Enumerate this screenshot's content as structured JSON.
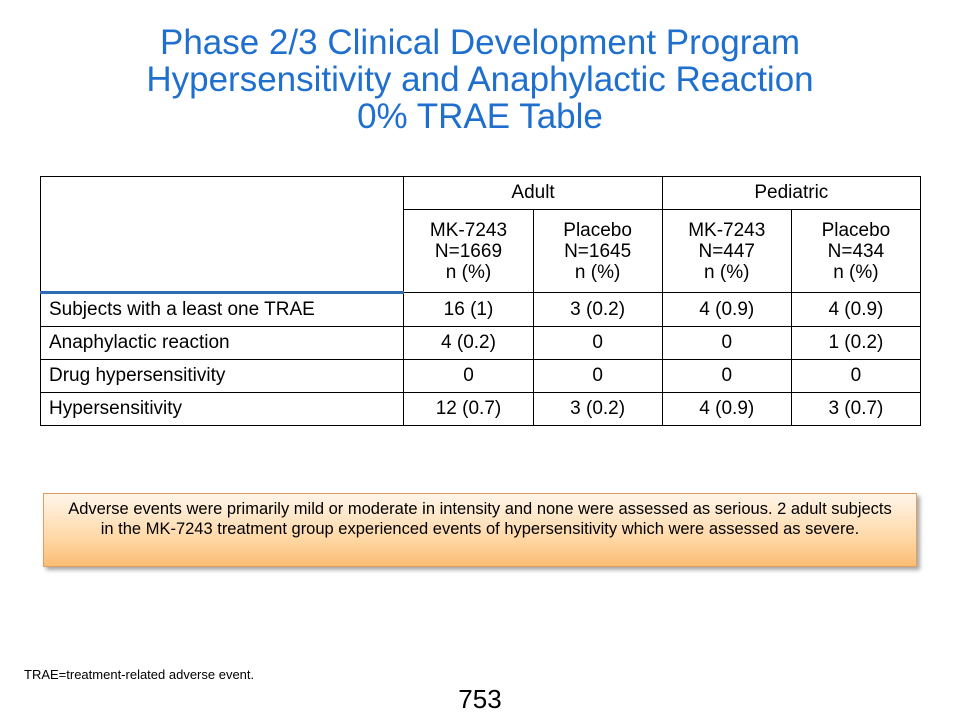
{
  "title": {
    "line1": "Phase 2/3 Clinical Development Program",
    "line2": "Hypersensitivity and Anaphylactic Reaction",
    "line3": "0% TRAE Table"
  },
  "table": {
    "groups": [
      "Adult",
      "Pediatric"
    ],
    "columns": [
      {
        "drug": "MK-7243",
        "n": "N=1669",
        "unit": "n (%)"
      },
      {
        "drug": "Placebo",
        "n": "N=1645",
        "unit": "n (%)"
      },
      {
        "drug": "MK-7243",
        "n": "N=447",
        "unit": "n (%)"
      },
      {
        "drug": "Placebo",
        "n": "N=434",
        "unit": "n (%)"
      }
    ],
    "rows": [
      {
        "label": "Subjects with a least one TRAE",
        "values": [
          "16 (1)",
          "3 (0.2)",
          "4 (0.9)",
          "4 (0.9)"
        ]
      },
      {
        "label": "Anaphylactic reaction",
        "values": [
          "4 (0.2)",
          "0",
          "0",
          "1 (0.2)"
        ]
      },
      {
        "label": "Drug hypersensitivity",
        "values": [
          "0",
          "0",
          "0",
          "0"
        ]
      },
      {
        "label": "Hypersensitivity",
        "values": [
          "12 (0.7)",
          "3 (0.2)",
          "4 (0.9)",
          "3 (0.7)"
        ]
      }
    ]
  },
  "note": "Adverse events were primarily mild or moderate in intensity and none were assessed as serious. 2 adult subjects in the MK-7243 treatment group experienced events of hypersensitivity which were assessed as severe.",
  "footnote": "TRAE=treatment-related  adverse event.",
  "page_number": "753"
}
